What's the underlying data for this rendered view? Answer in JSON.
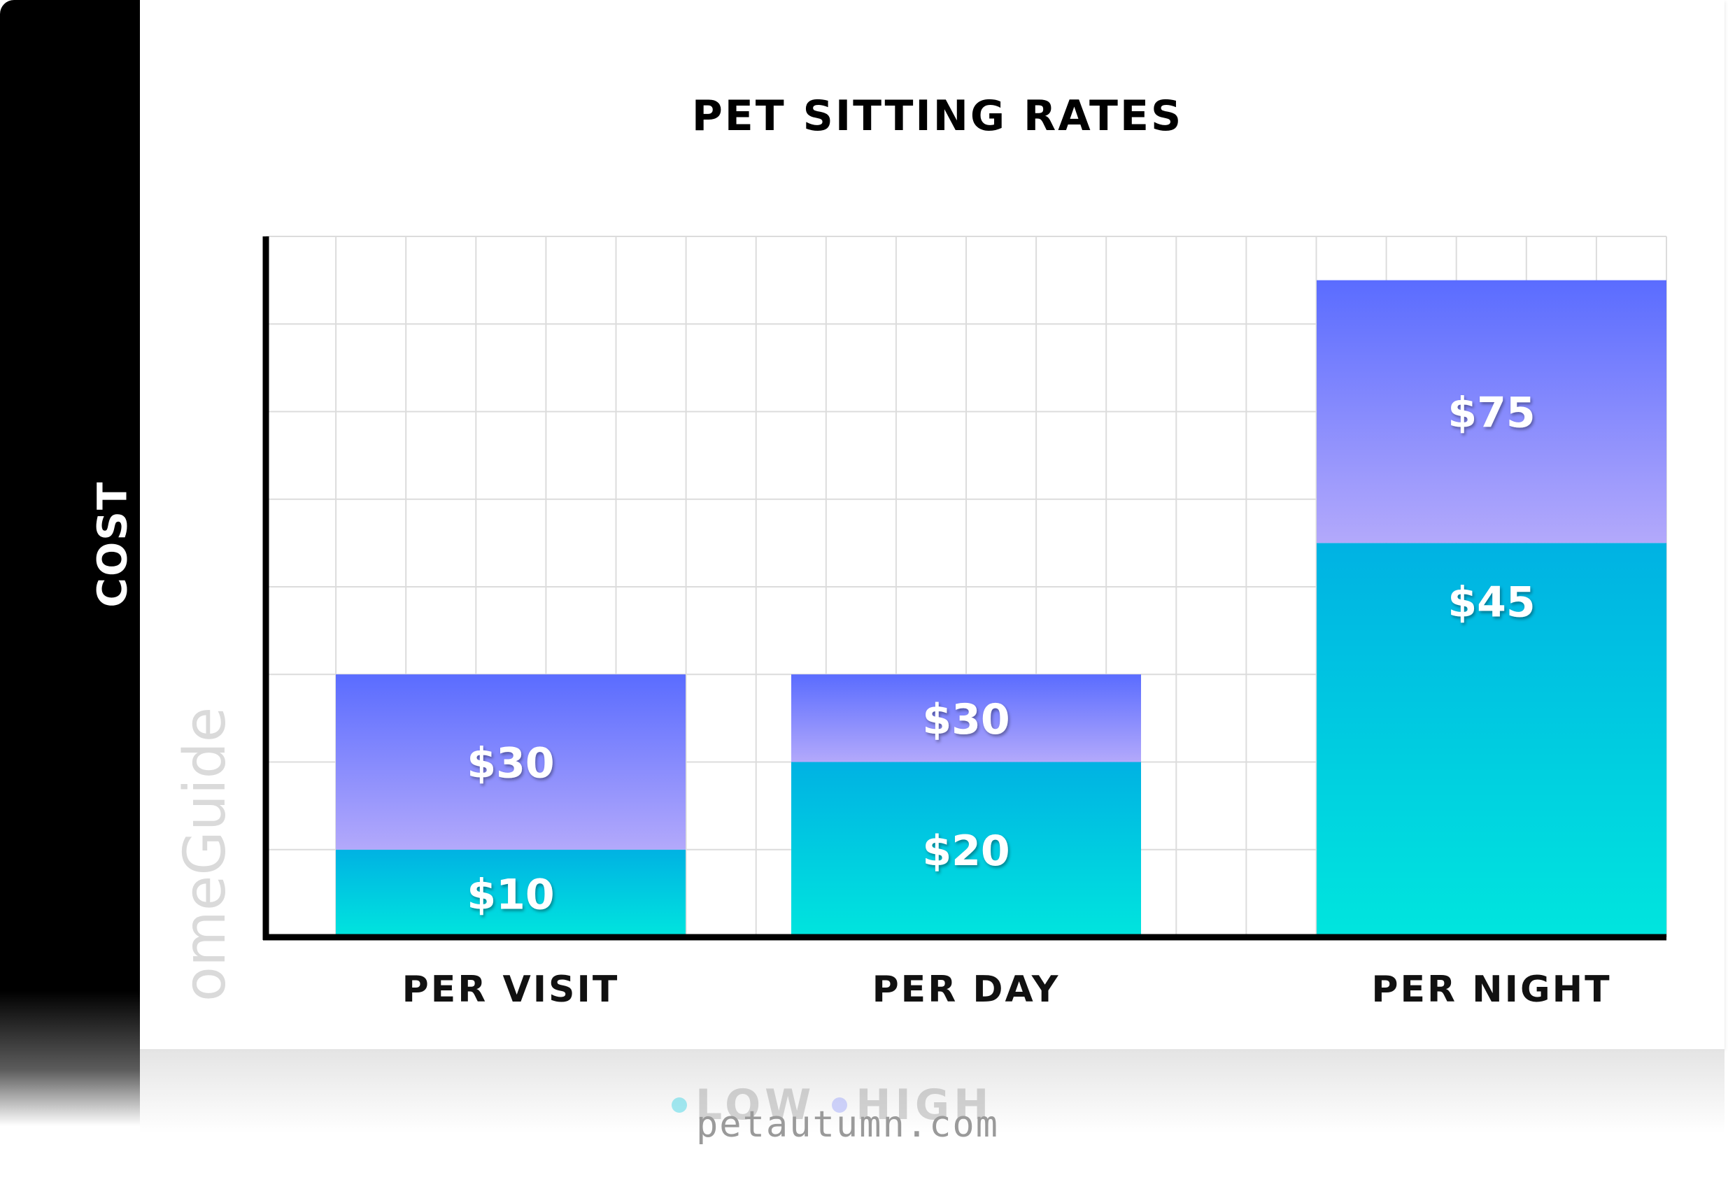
{
  "chart_data": {
    "type": "bar",
    "stacked": true,
    "title": "PET SITTING RATES",
    "ylabel": "COST",
    "xlabel": "",
    "categories": [
      "PER VISIT",
      "PER DAY",
      "PER NIGHT"
    ],
    "ylim": [
      0,
      80
    ],
    "grid": true,
    "legend_position": "bottom",
    "series": [
      {
        "name": "LOW",
        "values": [
          10,
          20,
          45
        ],
        "labels": [
          "$10",
          "$20",
          "$45"
        ],
        "color_top": "#00b2e3",
        "color_bottom": "#00e5de"
      },
      {
        "name": "HIGH",
        "values": [
          20,
          10,
          30
        ],
        "labels": [
          "$30",
          "$30",
          "$75"
        ],
        "color_top": "#5a6cff",
        "color_bottom": "#b3a9fb"
      }
    ]
  },
  "brand": "omeGuide",
  "watermark": "petautumn.com"
}
